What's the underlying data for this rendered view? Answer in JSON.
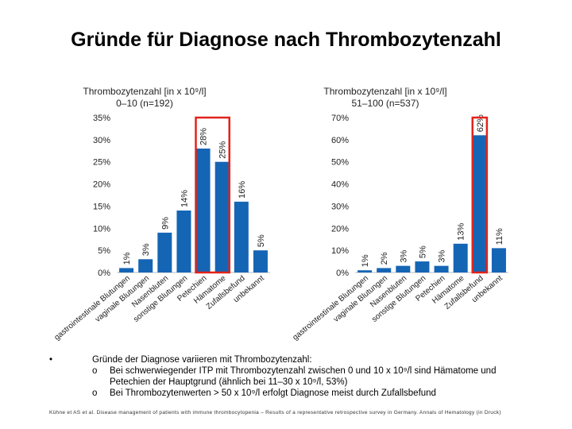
{
  "title": "Gründe für Diagnose nach Thrombozytenzahl",
  "chart_data": [
    {
      "type": "bar",
      "title_line1": "Thrombozytenzahl [in x 10⁹/l]",
      "title_line2": "0–10 (n=192)",
      "categories": [
        "gastrointestinale Blutungen",
        "vaginale Blutungen",
        "Nasenbluten",
        "sonstige Blutungen",
        "Petechien",
        "Hämatome",
        "Zufallsbefund",
        "unbekannt"
      ],
      "values": [
        1,
        3,
        9,
        14,
        28,
        25,
        16,
        5
      ],
      "value_labels": [
        "1%",
        "3%",
        "9%",
        "14%",
        "28%",
        "25%",
        "16%",
        "5%"
      ],
      "ylim": [
        0,
        35
      ],
      "yticks": [
        0,
        5,
        10,
        15,
        20,
        25,
        30,
        35
      ],
      "ytick_labels": [
        "0%",
        "5%",
        "10%",
        "15%",
        "20%",
        "25%",
        "30%",
        "35%"
      ],
      "highlight": [
        "Petechien",
        "Hämatome"
      ],
      "bar_color": "#1565b5",
      "highlight_color": "#e2231a"
    },
    {
      "type": "bar",
      "title_line1": "Thrombozytenzahl [in x 10⁹/l]",
      "title_line2": "51–100 (n=537)",
      "categories": [
        "gastrointestinale Blutungen",
        "vaginale Blutungen",
        "Nasenbluten",
        "sonstige Blutungen",
        "Petechien",
        "Hämatome",
        "Zufallsbefund",
        "unbekannt"
      ],
      "values": [
        1,
        2,
        3,
        5,
        3,
        13,
        62,
        11
      ],
      "value_labels": [
        "1%",
        "2%",
        "3%",
        "5%",
        "3%",
        "13%",
        "62%",
        "11%"
      ],
      "ylim": [
        0,
        70
      ],
      "yticks": [
        0,
        10,
        20,
        30,
        40,
        50,
        60,
        70
      ],
      "ytick_labels": [
        "0%",
        "10%",
        "20%",
        "30%",
        "40%",
        "50%",
        "60%",
        "70%"
      ],
      "highlight": [
        "Zufallsbefund"
      ],
      "bar_color": "#1565b5",
      "highlight_color": "#e2231a"
    }
  ],
  "notes": {
    "bullet_symbol": "•",
    "sub_symbol": "o",
    "main": "Gründe der Diagnose variieren mit Thrombozytenzahl:",
    "sub": [
      "Bei schwerwiegender ITP mit Thrombozytenzahl zwischen 0 und 10 x 10⁹/l sind Hämatome und Petechien der Hauptgrund (ähnlich bei 11–30 x 10⁹/l, 53%)",
      "Bei Thrombozytenwerten > 50 x 10⁹/l erfolgt Diagnose meist durch Zufallsbefund"
    ]
  },
  "footer": "Kühne et AS et al. Disease management of patients with immune thrombocytopenia – Results of a representative retrospective survey in Germany. Annals of Hematology (in Druck)"
}
